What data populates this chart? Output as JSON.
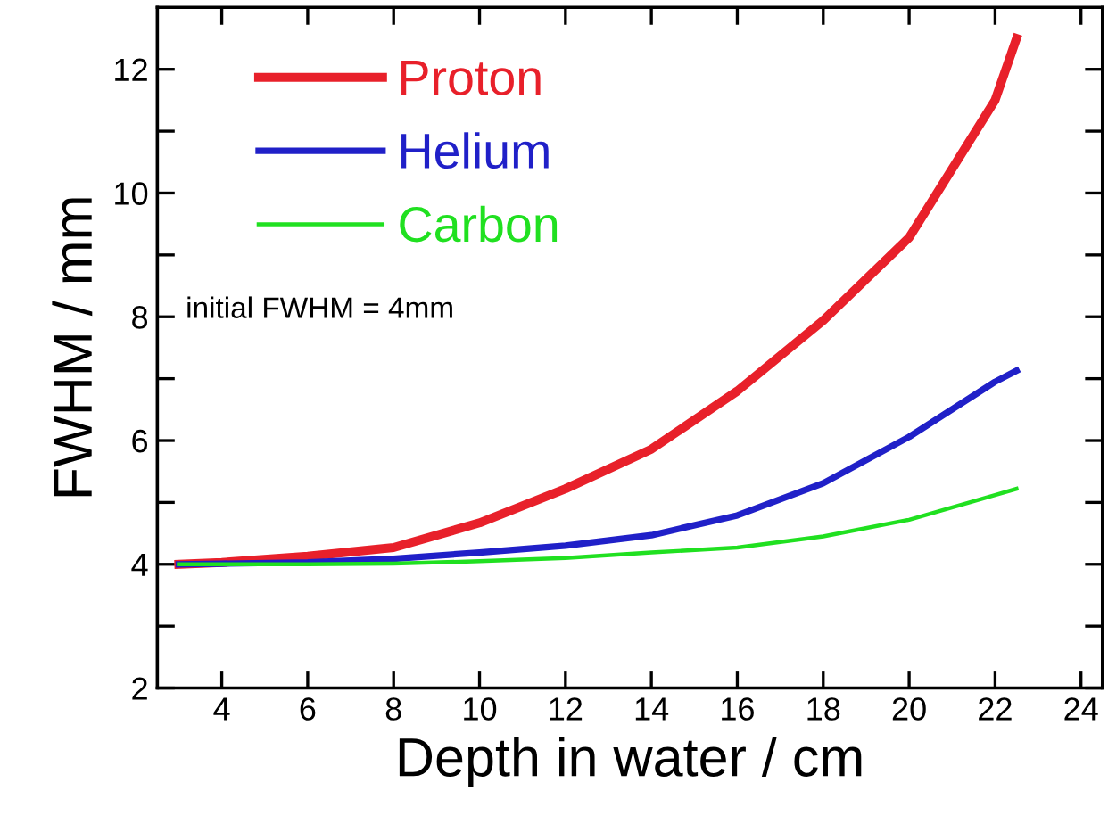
{
  "chart_data": {
    "type": "line",
    "xlabel": "Depth in water / cm",
    "ylabel": "FWHM / mm",
    "x": [
      3,
      4,
      6,
      8,
      10,
      12,
      14,
      16,
      18,
      20,
      22,
      22.5
    ],
    "series": [
      {
        "name": "Proton",
        "color": "#e8202a",
        "values": [
          4.0,
          4.03,
          4.13,
          4.27,
          4.67,
          5.22,
          5.86,
          6.8,
          7.94,
          9.28,
          11.5,
          12.5
        ]
      },
      {
        "name": "Helium",
        "color": "#2020c8",
        "values": [
          4.0,
          4.01,
          4.03,
          4.09,
          4.19,
          4.3,
          4.47,
          4.79,
          5.31,
          6.06,
          6.95,
          7.13
        ]
      },
      {
        "name": "Carbon",
        "color": "#20e020",
        "values": [
          4.0,
          4.0,
          4.0,
          4.01,
          4.05,
          4.1,
          4.19,
          4.27,
          4.45,
          4.72,
          5.12,
          5.22
        ]
      }
    ],
    "xlim": [
      2.5,
      24.5
    ],
    "ylim": [
      2,
      13
    ],
    "xticks": [
      4,
      6,
      8,
      10,
      12,
      14,
      16,
      18,
      20,
      22,
      24
    ],
    "yticks": [
      2,
      {
        "value": 3,
        "label": null
      },
      4,
      {
        "value": 5,
        "label": null
      },
      6,
      {
        "value": 7,
        "label": null
      },
      8,
      {
        "value": 9,
        "label": null
      },
      10,
      {
        "value": 11,
        "label": null
      },
      12
    ],
    "annotations": [
      "initial FWHM = 4mm"
    ],
    "legend": "top left",
    "grid": false,
    "marker": "none",
    "line_style": "solid"
  }
}
